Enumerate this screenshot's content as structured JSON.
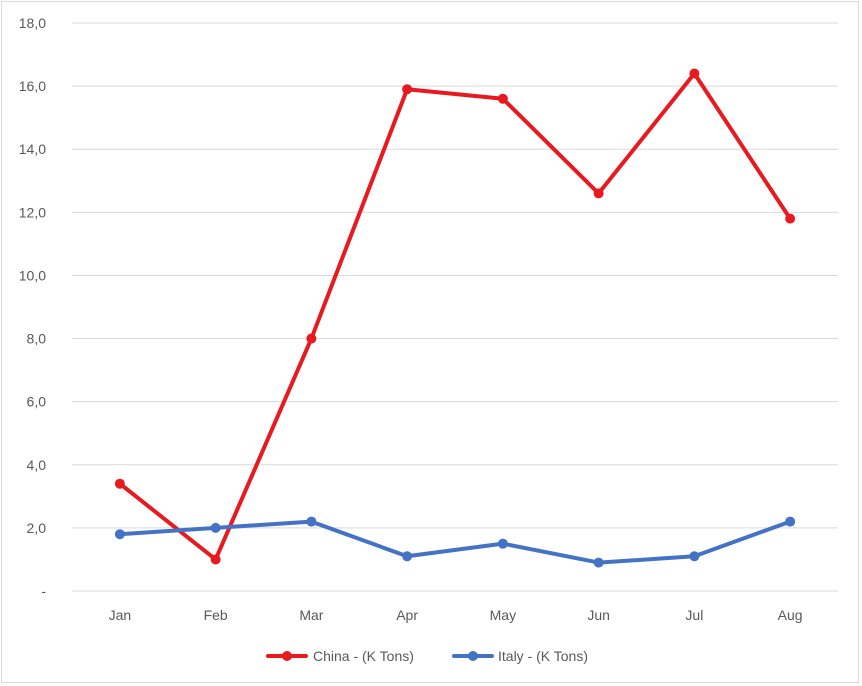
{
  "chart_data": {
    "type": "line",
    "categories": [
      "Jan",
      "Feb",
      "Mar",
      "Apr",
      "May",
      "Jun",
      "Jul",
      "Aug"
    ],
    "series": [
      {
        "name": "China - (K Tons)",
        "color": "#e8191f",
        "values": [
          3.4,
          1.0,
          8.0,
          15.9,
          15.6,
          12.6,
          16.4,
          11.8
        ]
      },
      {
        "name": "Italy - (K Tons)",
        "color": "#4472c4",
        "values": [
          1.8,
          2.0,
          2.2,
          1.1,
          1.5,
          0.9,
          1.1,
          2.2
        ]
      }
    ],
    "y_ticks": [
      "-",
      "2,0",
      "4,0",
      "6,0",
      "8,0",
      "10,0",
      "12,0",
      "14,0",
      "16,0",
      "18,0"
    ],
    "ylim": [
      0,
      18
    ],
    "grid": true,
    "legend_position": "bottom",
    "title": "",
    "xlabel": "",
    "ylabel": ""
  }
}
